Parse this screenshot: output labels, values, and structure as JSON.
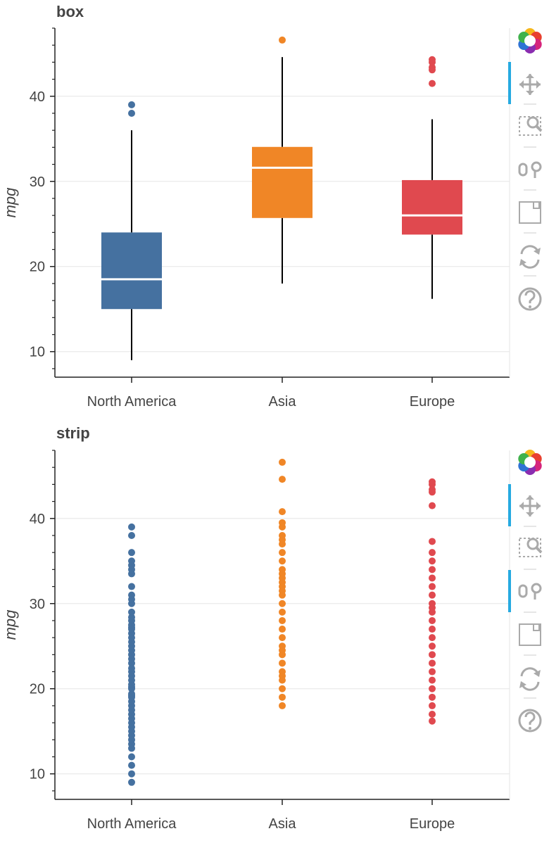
{
  "chart_data": [
    {
      "type": "box",
      "title": "box",
      "ylabel": "mpg",
      "xlabel": "",
      "categories": [
        "North America",
        "Asia",
        "Europe"
      ],
      "ylim": [
        7,
        48
      ],
      "yticks": [
        10,
        20,
        30,
        40
      ],
      "grid": true,
      "colors": [
        "#4571a0",
        "#f08626",
        "#e0494f"
      ],
      "boxes": [
        {
          "category": "North America",
          "whisker_low": 9,
          "q1": 15,
          "median": 18.5,
          "q3": 24,
          "whisker_high": 36,
          "outliers": [
            38,
            39
          ]
        },
        {
          "category": "Asia",
          "whisker_low": 18,
          "q1": 25.7,
          "median": 31.6,
          "q3": 34.05,
          "whisker_high": 44.6,
          "outliers": [
            46.6
          ]
        },
        {
          "category": "Europe",
          "whisker_low": 16.2,
          "q1": 23.75,
          "median": 26,
          "q3": 30.15,
          "whisker_high": 37.3,
          "outliers": [
            41.5,
            43.1,
            43.4,
            44,
            44.3
          ]
        }
      ]
    },
    {
      "type": "scatter",
      "title": "strip",
      "ylabel": "mpg",
      "xlabel": "",
      "categories": [
        "North America",
        "Asia",
        "Europe"
      ],
      "ylim": [
        7,
        48
      ],
      "yticks": [
        10,
        20,
        30,
        40
      ],
      "grid": true,
      "colors": [
        "#4571a0",
        "#f08626",
        "#e0494f"
      ],
      "series": [
        {
          "category": "North America",
          "values": [
            9,
            10,
            11,
            12,
            13,
            13.5,
            14,
            14.5,
            15,
            15.5,
            16,
            16.5,
            17,
            17.5,
            18,
            18.5,
            19,
            19.2,
            19.4,
            20,
            20.2,
            20.5,
            21,
            21.5,
            22,
            22.4,
            23,
            23.5,
            24,
            24.5,
            25,
            25.5,
            26,
            26.5,
            27,
            27.2,
            27.5,
            28,
            28.4,
            29,
            30,
            30.5,
            31,
            32,
            33.5,
            34,
            34.5,
            35,
            36,
            38,
            39
          ]
        },
        {
          "category": "Asia",
          "values": [
            18,
            19,
            20,
            21,
            21.5,
            22,
            23,
            24,
            24.5,
            25,
            26,
            27,
            28,
            29,
            30,
            31,
            31.5,
            32,
            32.5,
            33,
            33.5,
            34,
            35,
            36,
            37,
            37.5,
            38,
            39,
            39.5,
            40.8,
            44.6,
            46.6
          ]
        },
        {
          "category": "Europe",
          "values": [
            16.2,
            17,
            18,
            19,
            20,
            21,
            22,
            23,
            24,
            25,
            26,
            27,
            28,
            29,
            29.5,
            30,
            31,
            32,
            33,
            34,
            35,
            36,
            37.3,
            41.5,
            43.1,
            43.4,
            44,
            44.3
          ]
        }
      ]
    }
  ]
}
